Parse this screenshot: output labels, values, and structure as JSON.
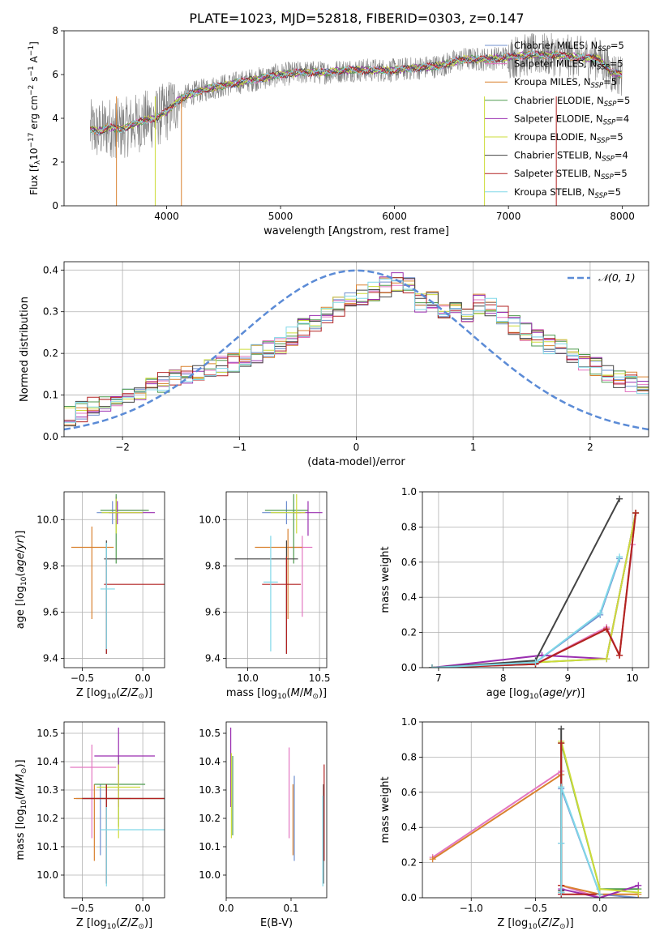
{
  "figure": {
    "title": "PLATE=1023, MJD=52818, FIBERID=0303, z=0.147"
  },
  "colors": {
    "gray": "#808080",
    "blue_dash": "#5b8bd6",
    "series": [
      "#6f8fcf",
      "#e377c2",
      "#d9812f",
      "#4e9a4e",
      "#9a2fb0",
      "#cddc39",
      "#444444",
      "#b22222",
      "#80d8e8"
    ]
  },
  "chart_data": [
    {
      "id": "spectrum",
      "type": "line",
      "xlabel": "wavelength [Angstrom, rest frame]",
      "ylabel": "Flux [f_λ10^-17 erg cm^-2 s^-1 A^-1]",
      "xlim": [
        3100,
        8230
      ],
      "ylim": [
        0,
        8
      ],
      "xticks": [
        4000,
        5000,
        6000,
        7000,
        8000
      ],
      "yticks": [
        0,
        2,
        4,
        6,
        8
      ],
      "legend_position": "upper-right",
      "continuum": {
        "x": [
          3330,
          3400,
          3500,
          3600,
          3700,
          3800,
          3900,
          4000,
          4100,
          4200,
          4400,
          4600,
          4800,
          5000,
          5200,
          5400,
          5600,
          5800,
          6000,
          6200,
          6400,
          6600,
          6800,
          7000,
          7200,
          7400,
          7600,
          7800,
          7900,
          8000
        ],
        "y": [
          3.5,
          3.4,
          3.6,
          3.5,
          3.7,
          3.9,
          4.0,
          4.3,
          4.8,
          5.1,
          5.4,
          5.6,
          5.8,
          6.0,
          6.1,
          6.1,
          6.2,
          6.2,
          6.2,
          6.3,
          6.4,
          6.7,
          6.7,
          6.8,
          6.9,
          6.9,
          6.8,
          6.7,
          6.1,
          6.0
        ]
      },
      "series": [
        {
          "name": "Chabrier MILES",
          "nssp": "5"
        },
        {
          "name": "Salpeter MILES",
          "nssp": "5"
        },
        {
          "name": "Kroupa MILES",
          "nssp": "5"
        },
        {
          "name": "Chabrier ELODIE",
          "nssp": "5"
        },
        {
          "name": "Salpeter ELODIE",
          "nssp": "4"
        },
        {
          "name": "Kroupa ELODIE",
          "nssp": "5"
        },
        {
          "name": "Chabrier STELIB",
          "nssp": "4"
        },
        {
          "name": "Salpeter STELIB",
          "nssp": "5"
        },
        {
          "name": "Kroupa STELIB",
          "nssp": "5"
        }
      ]
    },
    {
      "id": "residual-distribution",
      "type": "histogram",
      "xlabel": "(data-model)/error",
      "ylabel": "Normed distribution",
      "xlim": [
        -2.5,
        2.5
      ],
      "ylim": [
        0,
        0.42
      ],
      "xticks": [
        -2,
        -1,
        0,
        1,
        2
      ],
      "yticks": [
        0.0,
        0.1,
        0.2,
        0.3,
        0.4
      ],
      "grid": true,
      "reference_curve": {
        "name": "N(0, 1)",
        "style": "dashed"
      },
      "bin_edges_range": [
        -2.5,
        2.5
      ],
      "bin_width": 0.1,
      "base_values": [
        0.05,
        0.06,
        0.07,
        0.08,
        0.09,
        0.1,
        0.11,
        0.12,
        0.13,
        0.14,
        0.15,
        0.15,
        0.16,
        0.17,
        0.18,
        0.19,
        0.2,
        0.21,
        0.22,
        0.24,
        0.26,
        0.27,
        0.29,
        0.31,
        0.33,
        0.34,
        0.35,
        0.36,
        0.37,
        0.37,
        0.32,
        0.33,
        0.31,
        0.3,
        0.3,
        0.32,
        0.31,
        0.29,
        0.27,
        0.25,
        0.24,
        0.22,
        0.21,
        0.19,
        0.18,
        0.17,
        0.15,
        0.14,
        0.13,
        0.12
      ]
    },
    {
      "id": "age-vs-Z",
      "type": "errorbar",
      "xlabel": "Z [log10(Z/Z⊙)]",
      "ylabel": "age [log10(age/yr)]",
      "xlim": [
        -0.65,
        0.18
      ],
      "ylim": [
        9.36,
        10.12
      ],
      "xticks": [
        -0.5,
        0.0
      ],
      "yticks": [
        9.4,
        9.6,
        9.8,
        10.0
      ],
      "grid": true,
      "points": [
        {
          "s": 0,
          "x": -0.25,
          "y": 10.03,
          "xlo": 0.13,
          "xhi": 0.25,
          "ylo": 0.05,
          "yhi": 0.05
        },
        {
          "s": 1,
          "x": -0.22,
          "y": 10.04,
          "xlo": 0.05,
          "xhi": 0.25,
          "ylo": 0.05,
          "yhi": 0.06
        },
        {
          "s": 2,
          "x": -0.42,
          "y": 9.88,
          "xlo": 0.17,
          "xhi": 0.18,
          "ylo": 0.31,
          "yhi": 0.09
        },
        {
          "s": 3,
          "x": -0.22,
          "y": 10.04,
          "xlo": 0.13,
          "xhi": 0.27,
          "ylo": 0.23,
          "yhi": 0.07
        },
        {
          "s": 4,
          "x": -0.21,
          "y": 10.03,
          "xlo": 0.07,
          "xhi": 0.31,
          "ylo": 0.05,
          "yhi": 0.05
        },
        {
          "s": 5,
          "x": -0.22,
          "y": 10.03,
          "xlo": 0.12,
          "xhi": 0.22,
          "ylo": 0.09,
          "yhi": 0.06
        },
        {
          "s": 6,
          "x": -0.3,
          "y": 9.83,
          "xlo": 0.02,
          "xhi": 0.47,
          "ylo": 0.41,
          "yhi": 0.08
        },
        {
          "s": 7,
          "x": -0.3,
          "y": 9.72,
          "xlo": 0.02,
          "xhi": 0.48,
          "ylo": 0.3,
          "yhi": 0.12
        },
        {
          "s": 8,
          "x": -0.3,
          "y": 9.7,
          "xlo": 0.05,
          "xhi": 0.07,
          "ylo": 0.26,
          "yhi": 0.2
        }
      ]
    },
    {
      "id": "age-vs-mass",
      "type": "errorbar",
      "xlabel": "mass [log10(M/M⊙)]",
      "ylabel": "",
      "xlim": [
        9.85,
        10.55
      ],
      "ylim": [
        9.36,
        10.12
      ],
      "xticks": [
        10.0,
        10.5
      ],
      "yticks": [
        9.4,
        9.6,
        9.8,
        10.0
      ],
      "grid": true,
      "points": [
        {
          "s": 0,
          "x": 10.27,
          "y": 10.03,
          "xlo": 0.17,
          "xhi": 0.1,
          "ylo": 0.05,
          "yhi": 0.05
        },
        {
          "s": 1,
          "x": 10.38,
          "y": 9.88,
          "xlo": 0.1,
          "xhi": 0.07,
          "ylo": 0.3,
          "yhi": 0.05
        },
        {
          "s": 2,
          "x": 10.28,
          "y": 9.88,
          "xlo": 0.23,
          "xhi": 0.1,
          "ylo": 0.31,
          "yhi": 0.08
        },
        {
          "s": 3,
          "x": 10.32,
          "y": 10.04,
          "xlo": 0.2,
          "xhi": 0.1,
          "ylo": 0.23,
          "yhi": 0.07
        },
        {
          "s": 4,
          "x": 10.42,
          "y": 10.03,
          "xlo": 0.1,
          "xhi": 0.1,
          "ylo": 0.1,
          "yhi": 0.05
        },
        {
          "s": 5,
          "x": 10.34,
          "y": 10.03,
          "xlo": 0.18,
          "xhi": 0.06,
          "ylo": 0.09,
          "yhi": 0.08
        },
        {
          "s": 6,
          "x": 10.27,
          "y": 9.83,
          "xlo": 0.36,
          "xhi": 0.08,
          "ylo": 0.41,
          "yhi": 0.08
        },
        {
          "s": 7,
          "x": 10.27,
          "y": 9.72,
          "xlo": 0.17,
          "xhi": 0.1,
          "ylo": 0.3,
          "yhi": 0.12
        },
        {
          "s": 8,
          "x": 10.16,
          "y": 9.73,
          "xlo": 0.05,
          "xhi": 0.05,
          "ylo": 0.3,
          "yhi": 0.2
        }
      ]
    },
    {
      "id": "mass-weight-vs-age",
      "type": "line",
      "xlabel": "age [log10(age/yr)]",
      "ylabel": "mass weight",
      "xlim": [
        6.75,
        10.25
      ],
      "ylim": [
        0,
        1.0
      ],
      "xticks": [
        7,
        8,
        9,
        10
      ],
      "yticks": [
        0.0,
        0.2,
        0.4,
        0.6,
        0.8,
        1.0
      ],
      "grid": true,
      "series": [
        {
          "s": 0,
          "x": [
            6.9,
            8.5,
            9.5,
            9.8
          ],
          "y": [
            0.0,
            0.03,
            0.3,
            0.62
          ]
        },
        {
          "s": 1,
          "x": [
            6.9,
            8.5,
            9.6,
            9.8,
            10.0
          ],
          "y": [
            0.0,
            0.02,
            0.23,
            0.07,
            0.7
          ]
        },
        {
          "s": 2,
          "x": [
            6.9,
            8.5,
            9.6,
            9.8,
            10.05
          ],
          "y": [
            0.0,
            0.02,
            0.22,
            0.07,
            0.88
          ]
        },
        {
          "s": 3,
          "x": [
            6.9,
            8.5,
            9.6,
            10.05
          ],
          "y": [
            0.0,
            0.03,
            0.05,
            0.88
          ]
        },
        {
          "s": 4,
          "x": [
            6.9,
            8.6,
            9.6,
            10.05
          ],
          "y": [
            0.0,
            0.07,
            0.05,
            0.88
          ]
        },
        {
          "s": 5,
          "x": [
            6.9,
            8.5,
            9.6,
            10.05
          ],
          "y": [
            0.0,
            0.03,
            0.05,
            0.88
          ]
        },
        {
          "s": 6,
          "x": [
            6.9,
            8.5,
            9.8
          ],
          "y": [
            0.0,
            0.04,
            0.96
          ]
        },
        {
          "s": 7,
          "x": [
            6.9,
            8.5,
            9.6,
            9.8,
            10.05
          ],
          "y": [
            0.0,
            0.02,
            0.22,
            0.07,
            0.88
          ]
        },
        {
          "s": 8,
          "x": [
            6.9,
            8.5,
            9.5,
            9.8
          ],
          "y": [
            0.0,
            0.03,
            0.31,
            0.63
          ]
        }
      ]
    },
    {
      "id": "mass-vs-Z",
      "type": "errorbar",
      "xlabel": "Z [log10(Z/Z⊙)]",
      "ylabel": "mass [log10(M/M⊙)]",
      "xlim": [
        -0.65,
        0.18
      ],
      "ylim": [
        9.92,
        10.54
      ],
      "xticks": [
        -0.5,
        0.0
      ],
      "yticks": [
        10.0,
        10.1,
        10.2,
        10.3,
        10.4,
        10.5
      ],
      "grid": true,
      "points": [
        {
          "s": 0,
          "x": -0.35,
          "y": 10.27,
          "xlo": 0.2,
          "xhi": 0.25,
          "ylo": 0.2,
          "yhi": 0.05
        },
        {
          "s": 1,
          "x": -0.42,
          "y": 10.38,
          "xlo": 0.18,
          "xhi": 0.2,
          "ylo": 0.25,
          "yhi": 0.08
        },
        {
          "s": 2,
          "x": -0.4,
          "y": 10.27,
          "xlo": 0.17,
          "xhi": 0.58,
          "ylo": 0.22,
          "yhi": 0.05
        },
        {
          "s": 3,
          "x": -0.2,
          "y": 10.32,
          "xlo": 0.2,
          "xhi": 0.22,
          "ylo": 0.15,
          "yhi": 0.1
        },
        {
          "s": 4,
          "x": -0.2,
          "y": 10.42,
          "xlo": 0.2,
          "xhi": 0.3,
          "ylo": 0.18,
          "yhi": 0.1
        },
        {
          "s": 5,
          "x": -0.2,
          "y": 10.31,
          "xlo": 0.18,
          "xhi": 0.18,
          "ylo": 0.18,
          "yhi": 0.08
        },
        {
          "s": 6,
          "x": -0.3,
          "y": 10.27,
          "xlo": 0.2,
          "xhi": 0.48,
          "ylo": 0.3,
          "yhi": 0.05
        },
        {
          "s": 7,
          "x": -0.3,
          "y": 10.27,
          "xlo": 0.2,
          "xhi": 0.48,
          "ylo": 0.3,
          "yhi": 0.05
        },
        {
          "s": 8,
          "x": -0.3,
          "y": 10.16,
          "xlo": 0.05,
          "xhi": 0.48,
          "ylo": 0.2,
          "yhi": 0.08
        }
      ]
    },
    {
      "id": "mass-vs-EBV",
      "type": "errorbar",
      "xlabel": "E(B-V)",
      "ylabel": "",
      "xlim": [
        0.0,
        0.155
      ],
      "ylim": [
        9.92,
        10.54
      ],
      "xticks": [
        0.0,
        0.1
      ],
      "yticks": [
        10.0,
        10.1,
        10.2,
        10.3,
        10.4,
        10.5
      ],
      "grid": false,
      "points": [
        {
          "s": 0,
          "x": 0.105,
          "y": 10.27,
          "xlo": 0,
          "xhi": 0,
          "ylo": 0.22,
          "yhi": 0.08
        },
        {
          "s": 1,
          "x": 0.097,
          "y": 10.38,
          "xlo": 0,
          "xhi": 0,
          "ylo": 0.25,
          "yhi": 0.07
        },
        {
          "s": 2,
          "x": 0.103,
          "y": 10.27,
          "xlo": 0,
          "xhi": 0,
          "ylo": 0.2,
          "yhi": 0.05
        },
        {
          "s": 3,
          "x": 0.01,
          "y": 10.32,
          "xlo": 0,
          "xhi": 0,
          "ylo": 0.18,
          "yhi": 0.1
        },
        {
          "s": 4,
          "x": 0.007,
          "y": 10.42,
          "xlo": 0,
          "xhi": 0,
          "ylo": 0.18,
          "yhi": 0.1
        },
        {
          "s": 5,
          "x": 0.008,
          "y": 10.31,
          "xlo": 0,
          "xhi": 0,
          "ylo": 0.18,
          "yhi": 0.12
        },
        {
          "s": 6,
          "x": 0.15,
          "y": 10.27,
          "xlo": 0,
          "xhi": 0,
          "ylo": 0.3,
          "yhi": 0.05
        },
        {
          "s": 7,
          "x": 0.151,
          "y": 10.27,
          "xlo": 0,
          "xhi": 0,
          "ylo": 0.22,
          "yhi": 0.12
        },
        {
          "s": 8,
          "x": 0.149,
          "y": 10.16,
          "xlo": 0,
          "xhi": 0,
          "ylo": 0.2,
          "yhi": 0.12
        }
      ]
    },
    {
      "id": "mass-weight-vs-Z",
      "type": "line",
      "xlabel": "Z [log10(Z/Z⊙)]",
      "ylabel": "mass weight",
      "xlim": [
        -1.38,
        0.38
      ],
      "ylim": [
        0,
        1.0
      ],
      "xticks": [
        -1.0,
        -0.5,
        0.0
      ],
      "yticks": [
        0.0,
        0.2,
        0.4,
        0.6,
        0.8,
        1.0
      ],
      "grid": true,
      "series": [
        {
          "s": 0,
          "x": [
            -0.3,
            -0.3,
            -0.3,
            0.0,
            0.3
          ],
          "y": [
            0.03,
            0.31,
            0.62,
            0.02,
            0.0
          ]
        },
        {
          "s": 1,
          "x": [
            -1.3,
            -0.3,
            -0.3,
            0.0
          ],
          "y": [
            0.23,
            0.72,
            0.07,
            0.0
          ]
        },
        {
          "s": 2,
          "x": [
            -1.3,
            -0.3,
            -0.3,
            0.0,
            0.3
          ],
          "y": [
            0.22,
            0.7,
            0.07,
            0.02,
            0.02
          ]
        },
        {
          "s": 3,
          "x": [
            -0.3,
            -0.3,
            0.0,
            0.3
          ],
          "y": [
            0.03,
            0.88,
            0.05,
            0.05
          ]
        },
        {
          "s": 4,
          "x": [
            -0.3,
            -0.3,
            0.0,
            0.3
          ],
          "y": [
            0.02,
            0.05,
            0.0,
            0.07
          ]
        },
        {
          "s": 5,
          "x": [
            -0.3,
            -0.3,
            0.0,
            0.3
          ],
          "y": [
            0.88,
            0.89,
            0.05,
            0.03
          ]
        },
        {
          "s": 6,
          "x": [
            -0.3,
            -0.3
          ],
          "y": [
            0.04,
            0.96
          ]
        },
        {
          "s": 7,
          "x": [
            -0.3,
            -0.3,
            -0.3,
            0.0
          ],
          "y": [
            0.07,
            0.88,
            0.02,
            0.02
          ]
        },
        {
          "s": 8,
          "x": [
            -0.3,
            -0.3,
            -0.3,
            0.0
          ],
          "y": [
            0.03,
            0.31,
            0.63,
            0.02
          ]
        }
      ]
    }
  ]
}
